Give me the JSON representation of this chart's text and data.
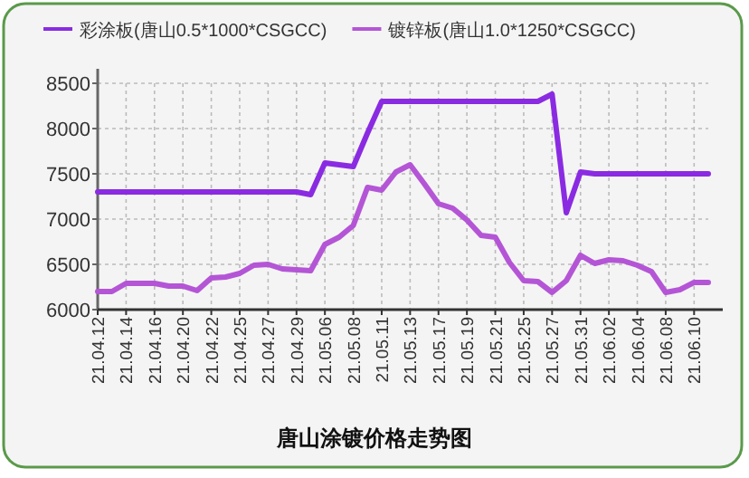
{
  "chart_data": {
    "type": "line",
    "title": "唐山涂镀价格走势图",
    "categories": [
      "21.04.12",
      null,
      "21.04.14",
      null,
      "21.04.16",
      null,
      "21.04.20",
      null,
      "21.04.22",
      null,
      "21.04.25",
      null,
      "21.04.27",
      null,
      "21.04.29",
      null,
      "21.05.06",
      null,
      "21.05.08",
      null,
      "21.05.11",
      null,
      "21.05.13",
      null,
      "21.05.17",
      null,
      "21.05.19",
      null,
      "21.05.21",
      null,
      "21.05.25",
      null,
      "21.05.27",
      null,
      "21.05.31",
      null,
      "21.06.02",
      null,
      "21.06.04",
      null,
      "21.06.08",
      null,
      "21.06.10",
      null
    ],
    "series": [
      {
        "name": "彩涂板(唐山0.5*1000*CSGCC)",
        "color": "#8a2be2",
        "values": [
          7300,
          7300,
          7300,
          7300,
          7300,
          7300,
          7300,
          7300,
          7300,
          7300,
          7300,
          7300,
          7300,
          7300,
          7300,
          7270,
          7620,
          7600,
          7580,
          7950,
          8300,
          8300,
          8300,
          8300,
          8300,
          8300,
          8300,
          8300,
          8300,
          8300,
          8300,
          8300,
          8380,
          7070,
          7520,
          7500,
          7500,
          7500,
          7500,
          7500,
          7500,
          7500,
          7500,
          7500
        ]
      },
      {
        "name": "镀锌板(唐山1.0*1250*CSGCC)",
        "color": "#b455d6",
        "values": [
          6200,
          6200,
          6290,
          6290,
          6290,
          6260,
          6260,
          6210,
          6350,
          6360,
          6400,
          6490,
          6500,
          6450,
          6440,
          6430,
          6720,
          6800,
          6930,
          7350,
          7320,
          7520,
          7600,
          7390,
          7170,
          7120,
          6990,
          6820,
          6800,
          6520,
          6320,
          6310,
          6190,
          6320,
          6600,
          6510,
          6550,
          6540,
          6490,
          6420,
          6190,
          6220,
          6300,
          6300
        ]
      }
    ],
    "ylim": [
      6000,
      8500
    ],
    "yticks": [
      6000,
      6500,
      7000,
      7500,
      8000,
      8500
    ],
    "grid": true,
    "legend": "top",
    "line_style": "solid",
    "marker": "none"
  }
}
